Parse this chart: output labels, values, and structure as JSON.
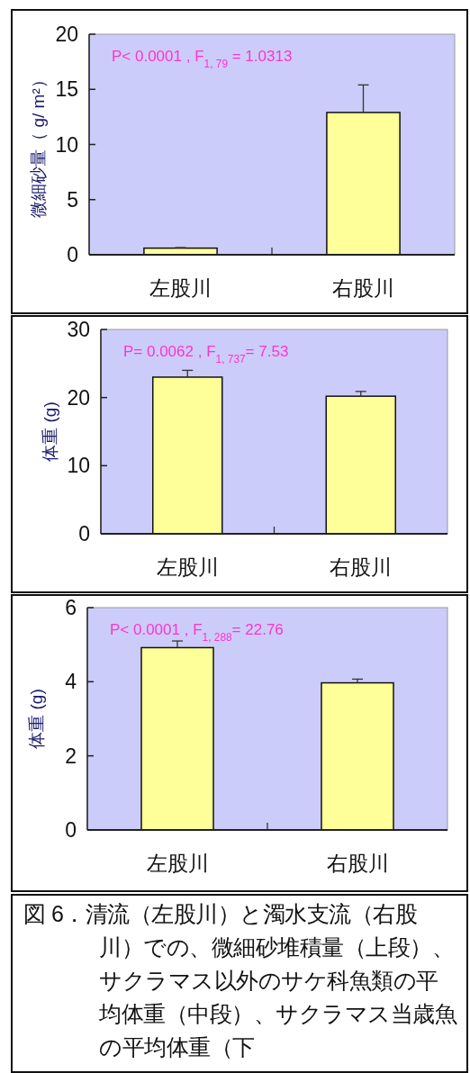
{
  "chart_data": [
    {
      "type": "bar",
      "categories": [
        "左股川",
        "右股川"
      ],
      "values": [
        0.6,
        12.9
      ],
      "errors": [
        [
          0.6,
          0.65
        ],
        [
          12.9,
          15.4
        ]
      ],
      "color": "#ffff99",
      "ylabel": "微細砂量（ g/ m²）",
      "ylim": [
        0,
        20
      ],
      "yticks": [
        0,
        5,
        10,
        15,
        20
      ],
      "annotations": [
        "P< 0.0001 , F$_{1, 79}$ = 1.0313"
      ],
      "grid": false
    },
    {
      "type": "bar",
      "categories": [
        "左股川",
        "右股川"
      ],
      "values": [
        23.0,
        20.2
      ],
      "errors": [
        [
          23.0,
          24.0
        ],
        [
          20.2,
          20.9
        ]
      ],
      "color": "#ffff99",
      "ylabel": "体重 (g)",
      "ylim": [
        0,
        30
      ],
      "yticks": [
        0,
        10,
        20,
        30
      ],
      "annotations": [
        "P= 0.0062 ,  F$_{1, 737}$= 7.53"
      ],
      "grid": false
    },
    {
      "type": "bar",
      "categories": [
        "左股川",
        "右股川"
      ],
      "values": [
        4.92,
        3.97
      ],
      "errors": [
        [
          4.92,
          5.1
        ],
        [
          3.97,
          4.07
        ]
      ],
      "color": "#ffff99",
      "ylabel": "体重 (g)",
      "ylim": [
        0,
        6
      ],
      "yticks": [
        0,
        2,
        4,
        6
      ],
      "annotations": [
        "P< 0.0001 , F$_{1, 288}$= 22.76"
      ],
      "grid": false
    },
    {
      "type": "other",
      "annotations": [
        "図 6．清流（左股川）と濁水支流（右股川）での、微細砂堆積量（上段）、サクラマス以外のサケ科魚類の平均体重（中段）、サクラマス当歳魚の平均体重（下"
      ]
    }
  ]
}
